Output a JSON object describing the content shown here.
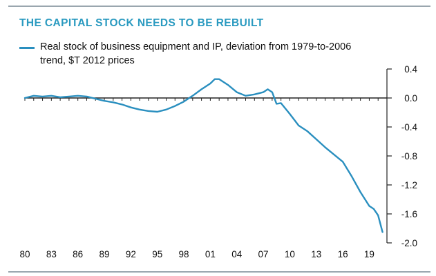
{
  "title": "THE CAPITAL STOCK NEEDS TO BE REBUILT",
  "colors": {
    "title": "#2a9ac0",
    "series": "#2a8fbf",
    "rule": "#9aa6ae",
    "axis": "#222222"
  },
  "chart_data": {
    "type": "line",
    "title": "THE CAPITAL STOCK NEEDS TO BE REBUILT",
    "xlabel": "",
    "ylabel": "",
    "xlim": [
      1980,
      2021
    ],
    "ylim": [
      -2.0,
      0.4
    ],
    "y_ticks": [
      0.4,
      0.0,
      -0.4,
      -0.8,
      -1.2,
      -1.6,
      -2.0
    ],
    "y_tick_labels": [
      "0.4",
      "0.0",
      "-0.4",
      "-0.8",
      "-1.2",
      "-1.6",
      "-2.0"
    ],
    "x_ticks": [
      1980,
      1983,
      1986,
      1989,
      1992,
      1995,
      1998,
      2001,
      2004,
      2007,
      2010,
      2013,
      2016,
      2019
    ],
    "x_tick_labels": [
      "80",
      "83",
      "86",
      "89",
      "92",
      "95",
      "98",
      "01",
      "04",
      "07",
      "10",
      "13",
      "16",
      "19"
    ],
    "y_axis_position": "right",
    "grid": false,
    "legend_position": "top-left",
    "series": [
      {
        "name": "Real stock of business equipment and IP, deviation from 1979-to-2006 trend, $T 2012 prices",
        "x": [
          1980,
          1981,
          1982,
          1983,
          1984,
          1985,
          1986,
          1987,
          1988,
          1989,
          1990,
          1991,
          1992,
          1993,
          1994,
          1995,
          1996,
          1997,
          1998,
          1999,
          2000,
          2001,
          2001.5,
          2002,
          2003,
          2004,
          2005,
          2006,
          2007,
          2007.5,
          2008,
          2008.5,
          2009,
          2010,
          2011,
          2012,
          2013,
          2014,
          2015,
          2016,
          2017,
          2018,
          2019,
          2019.5,
          2020,
          2020.5
        ],
        "values": [
          0.0,
          0.03,
          0.02,
          0.03,
          0.01,
          0.02,
          0.03,
          0.02,
          -0.01,
          -0.04,
          -0.06,
          -0.09,
          -0.13,
          -0.16,
          -0.18,
          -0.19,
          -0.16,
          -0.11,
          -0.05,
          0.03,
          0.12,
          0.2,
          0.26,
          0.26,
          0.18,
          0.08,
          0.03,
          0.05,
          0.08,
          0.12,
          0.08,
          -0.08,
          -0.07,
          -0.22,
          -0.38,
          -0.46,
          -0.57,
          -0.68,
          -0.78,
          -0.88,
          -1.08,
          -1.3,
          -1.49,
          -1.53,
          -1.62,
          -1.85
        ]
      }
    ]
  }
}
